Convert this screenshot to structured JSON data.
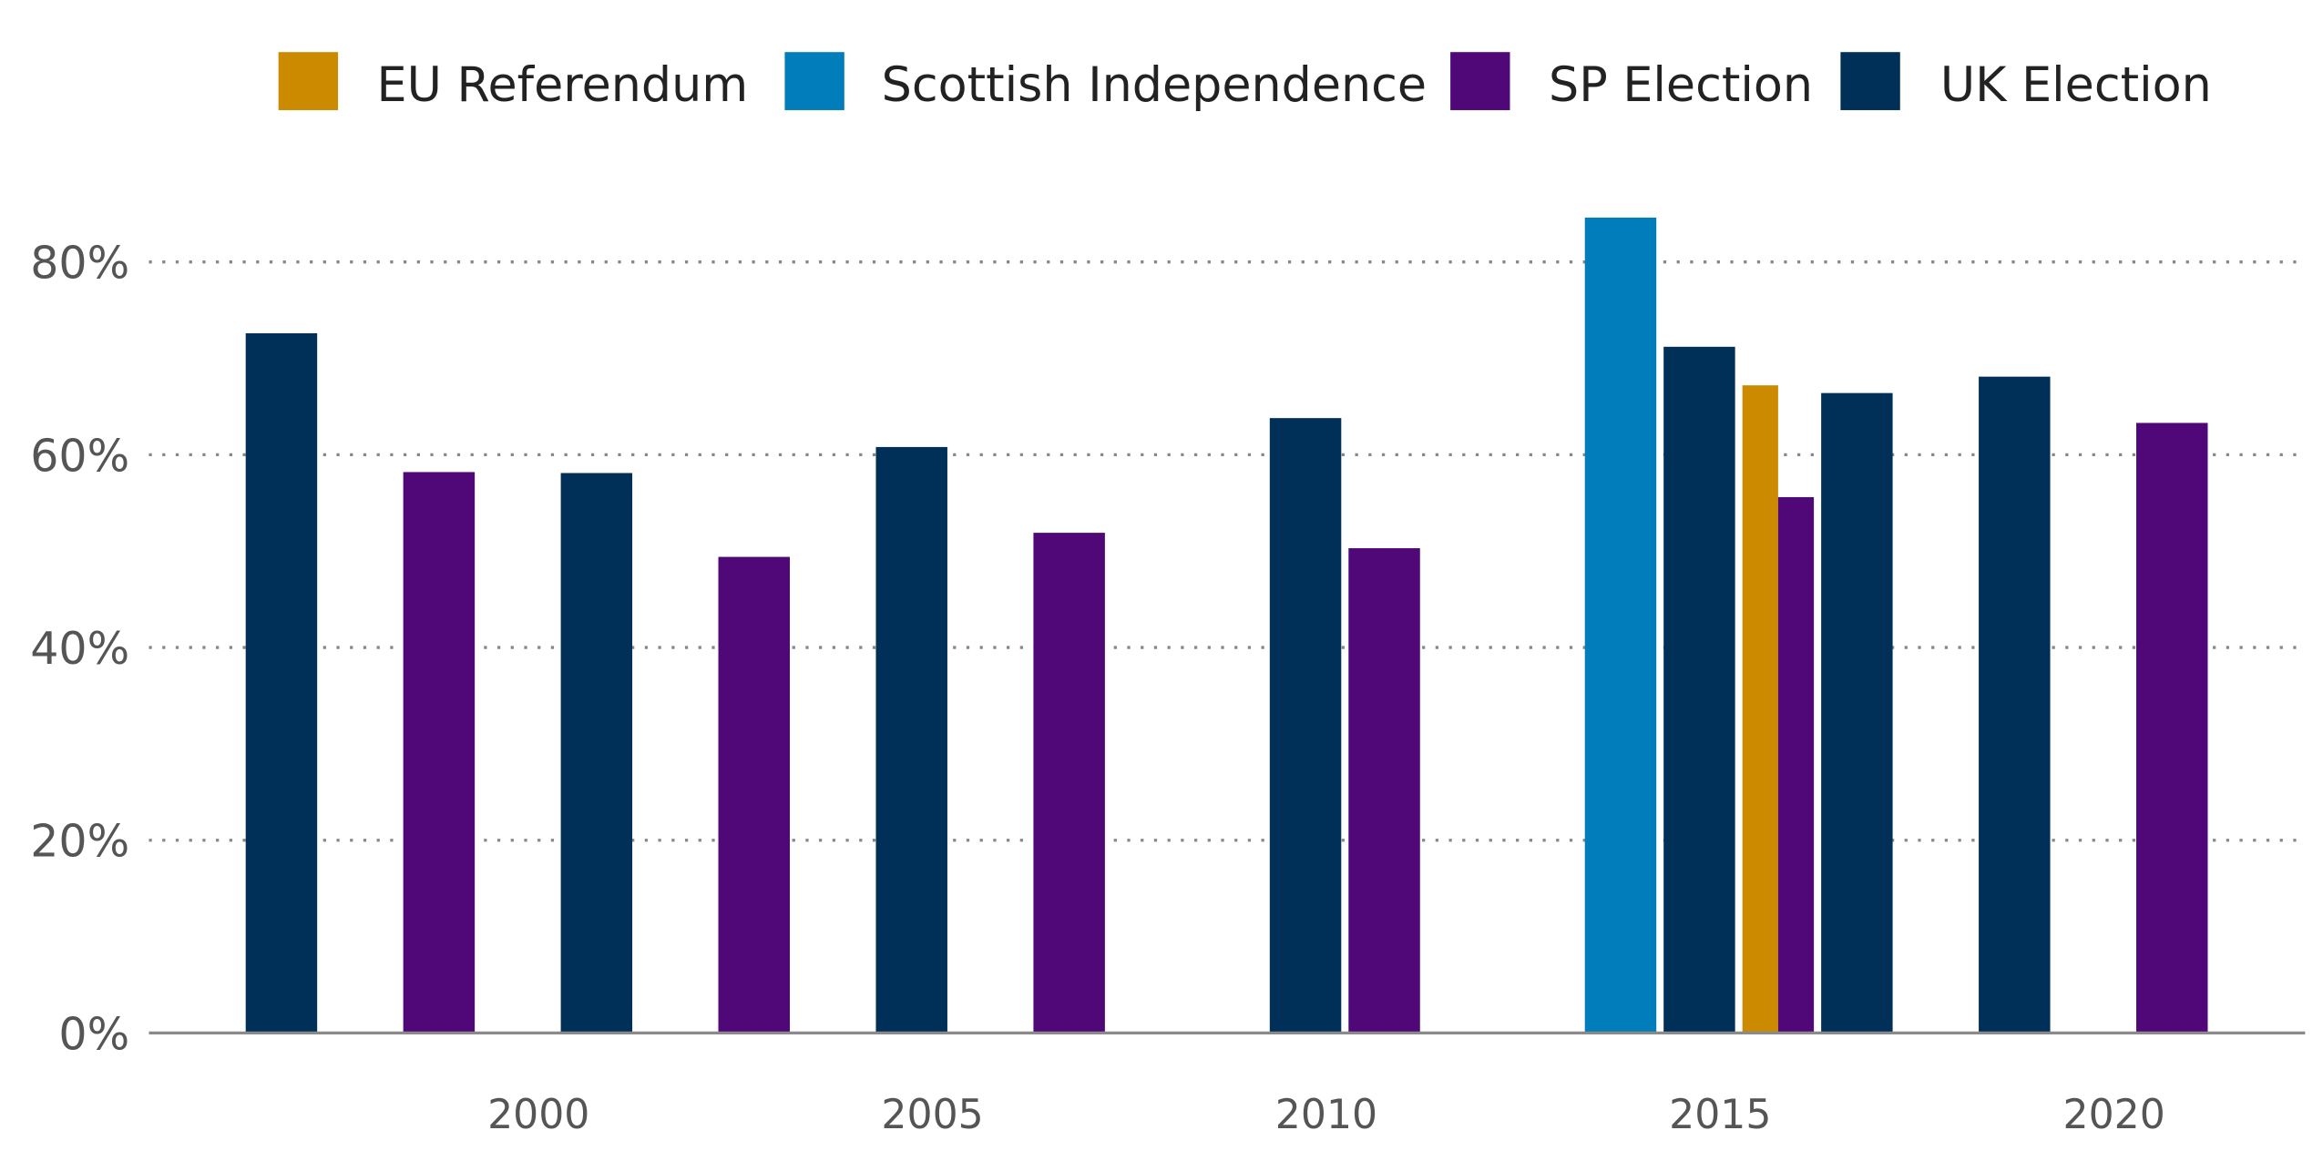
{
  "chart_data": {
    "type": "bar",
    "title": "",
    "xlabel": "",
    "ylabel": "",
    "ylim": [
      0,
      88
    ],
    "yticks": [
      "0%",
      "20%",
      "40%",
      "60%",
      "80%"
    ],
    "ytick_values": [
      0,
      20,
      40,
      60,
      80
    ],
    "xticks": [
      "2000",
      "2005",
      "2010",
      "2015",
      "2020"
    ],
    "xlim": [
      1996,
      2023
    ],
    "grid": "horizontal dotted",
    "legend_position": "top",
    "series": [
      {
        "name": "EU Referendum",
        "color": "#CC8A00",
        "x": [
          2016
        ],
        "values": [
          67.2
        ]
      },
      {
        "name": "Scottish Independence",
        "color": "#007DBA",
        "x": [
          2014
        ],
        "values": [
          84.6
        ]
      },
      {
        "name": "SP Election",
        "color": "#500778",
        "x": [
          1999,
          2003,
          2007,
          2011,
          2016,
          2021
        ],
        "values": [
          58.2,
          49.4,
          51.9,
          50.3,
          55.6,
          63.3
        ]
      },
      {
        "name": "UK Election",
        "color": "#003057",
        "x": [
          1997,
          2001,
          2005,
          2010,
          2015,
          2017,
          2019
        ],
        "values": [
          72.6,
          58.1,
          60.8,
          63.8,
          71.2,
          66.4,
          68.1
        ]
      }
    ]
  }
}
